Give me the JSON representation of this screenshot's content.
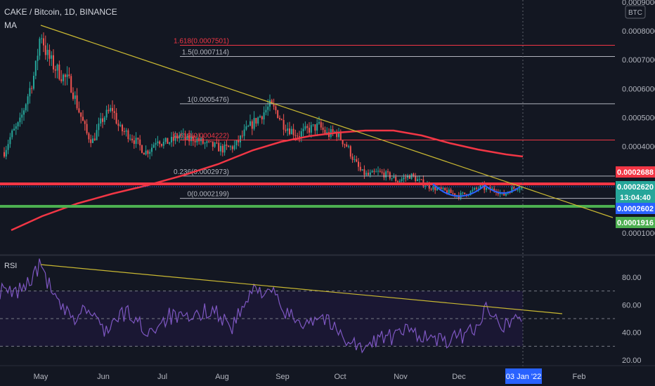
{
  "header": {
    "title": "CAKE / Bitcoin, 1D, BINANCE",
    "ma_label": "MA",
    "currency_badge": "BTC"
  },
  "price_axis": {
    "ticks": [
      "0.0008000",
      "0.0007000",
      "0.0006000",
      "0.0005000",
      "0.0004000",
      "0.0001000"
    ],
    "top_partial": "0.0009000"
  },
  "time_axis": {
    "months": [
      "May",
      "Jun",
      "Jul",
      "Aug",
      "Sep",
      "Oct",
      "Nov",
      "Dec",
      "Feb"
    ],
    "cursor_date": "03 Jan '22"
  },
  "fib_levels": [
    {
      "label": "1.618(0.0007501)",
      "value": 0.0007501,
      "color": "#f23645"
    },
    {
      "label": "1.5(0.0007114)",
      "value": 0.0007114,
      "color": "#b2b5be"
    },
    {
      "label": "1(0.0005476)",
      "value": 0.0005476,
      "color": "#b2b5be"
    },
    {
      "label": "0.618(0.0004222)",
      "value": 0.0004222,
      "color": "#f23645"
    },
    {
      "label": "0.236(0.0002973)",
      "value": 0.0002973,
      "color": "#b2b5be"
    },
    {
      "label": "0(0.0002199)",
      "value": 0.0002199,
      "color": "#b2b5be"
    }
  ],
  "price_badges": [
    {
      "text": "0.0002688",
      "color": "#f23645"
    },
    {
      "text": "0.0002620",
      "color": "#26a69a"
    },
    {
      "text": "13:04:40",
      "color": "#26a69a"
    },
    {
      "text": "0.0002602",
      "color": "#2962ff"
    },
    {
      "text": "0.0001916",
      "color": "#4caf50"
    }
  ],
  "rsi": {
    "label": "RSI",
    "ticks": [
      "80.00",
      "60.00",
      "40.00",
      "20.00"
    ],
    "bands": [
      70,
      50,
      30
    ]
  },
  "colors": {
    "background": "#131722",
    "up": "#26a69a",
    "down": "#ef5350",
    "ma": "#f23645",
    "trendline": "#c9b832",
    "rsi": "#7e57c2",
    "resistance": "#f23645",
    "support": "#4caf50",
    "cup": "#2962ff"
  },
  "chart_data": {
    "type": "candlestick",
    "symbol": "CAKE / Bitcoin",
    "interval": "1D",
    "exchange": "BINANCE",
    "x": [
      "May",
      "Jun",
      "Jul",
      "Aug",
      "Sep",
      "Oct",
      "Nov",
      "Dec",
      "Jan",
      "Feb"
    ],
    "close_approx": [
      0.00078,
      0.00052,
      0.00039,
      0.00038,
      0.00054,
      0.00046,
      0.0003,
      0.00025,
      0.00026,
      null
    ],
    "ma": [
      0.0001,
      0.00015,
      0.00021,
      0.00029,
      0.0004,
      0.00045,
      0.00043,
      0.00038,
      0.00036,
      null
    ],
    "rsi_approx": [
      88,
      50,
      45,
      65,
      70,
      45,
      40,
      35,
      55,
      null
    ],
    "ylim": [
      5e-05,
      0.00092
    ],
    "rsi_ylim": [
      20,
      90
    ]
  }
}
